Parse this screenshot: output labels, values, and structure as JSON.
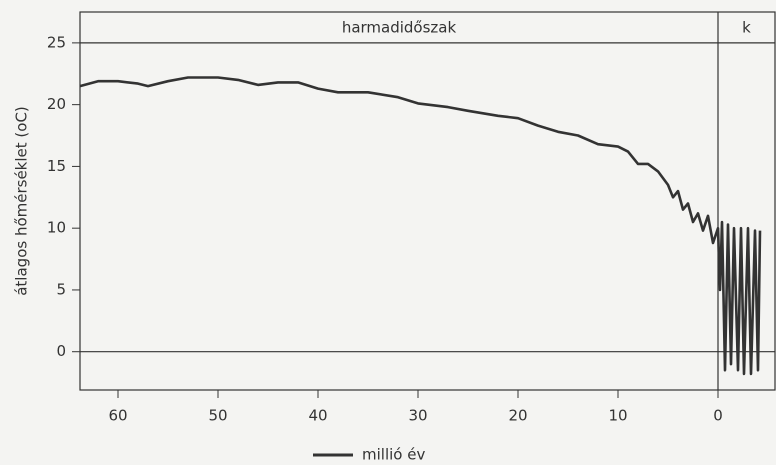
{
  "chart_data": {
    "type": "line",
    "xlabel": "millió év",
    "ylabel": "átlagos hőmérséklet (oC)",
    "xlim": [
      63.8,
      -5.7
    ],
    "ylim": [
      -3.1,
      27.5
    ],
    "xticks": [
      60,
      50,
      40,
      30,
      20,
      10,
      0
    ],
    "yticks": [
      0,
      5,
      10,
      15,
      20,
      25
    ],
    "reference_lines": [
      0,
      25
    ],
    "periods": [
      {
        "name": "harmadidőszak",
        "start": 63.8,
        "end": 0
      },
      {
        "name": "k",
        "start": 0,
        "end": -5.7
      }
    ],
    "series": [
      {
        "color": "#333333",
        "x": [
          63.8,
          62,
          60,
          58,
          57,
          55,
          53,
          50,
          48,
          46,
          44,
          42,
          40,
          38,
          35,
          32,
          30,
          27,
          25,
          22,
          20,
          18,
          16,
          14,
          12,
          10,
          9,
          8,
          7,
          6,
          5,
          4.5,
          4,
          3.5,
          3,
          2.5,
          2,
          1.5,
          1,
          0.5,
          0,
          -0.2,
          -0.4,
          -0.7,
          -1,
          -1.3,
          -1.6,
          -2,
          -2.3,
          -2.6,
          -3,
          -3.3,
          -3.7,
          -4,
          -4.2
        ],
        "values": [
          21.5,
          21.9,
          21.9,
          21.7,
          21.5,
          21.9,
          22.2,
          22.2,
          22,
          21.6,
          21.8,
          21.8,
          21.3,
          21,
          21,
          20.6,
          20.1,
          19.8,
          19.5,
          19.1,
          18.9,
          18.3,
          17.8,
          17.5,
          16.8,
          16.6,
          16.2,
          15.2,
          15.2,
          14.6,
          13.5,
          12.5,
          13,
          11.5,
          12,
          10.5,
          11.2,
          9.8,
          11,
          8.8,
          10,
          5,
          10.5,
          -1.5,
          10.3,
          -1,
          10,
          -1.5,
          10,
          -1.8,
          10,
          -1.8,
          9.8,
          -1.5,
          9.8
        ]
      }
    ]
  }
}
